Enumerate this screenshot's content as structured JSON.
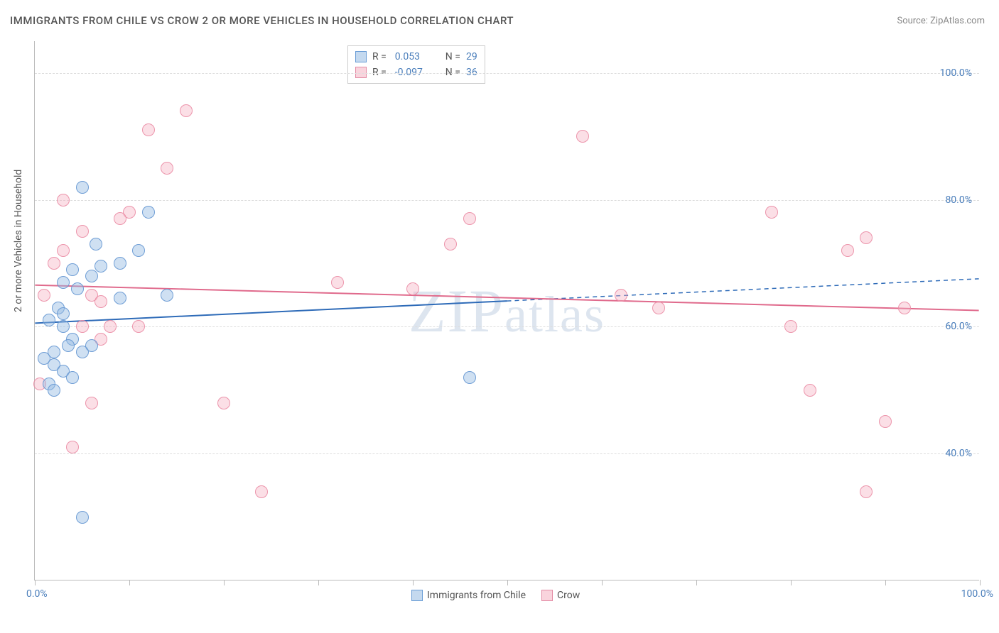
{
  "title": "IMMIGRANTS FROM CHILE VS CROW 2 OR MORE VEHICLES IN HOUSEHOLD CORRELATION CHART",
  "source": "Source: ZipAtlas.com",
  "watermark": "ZIPatlas",
  "y_title": "2 or more Vehicles in Household",
  "chart": {
    "type": "scatter",
    "xlim": [
      0,
      100
    ],
    "ylim": [
      20,
      105
    ],
    "x_ticks": [
      0,
      10,
      20,
      30,
      40,
      50,
      60,
      70,
      80,
      90,
      100
    ],
    "y_grid": [
      40,
      60,
      80,
      100
    ],
    "x_axis_labels": {
      "min": "0.0%",
      "max": "100.0%"
    },
    "y_axis_labels": {
      "40": "40.0%",
      "60": "60.0%",
      "80": "80.0%",
      "100": "100.0%"
    },
    "background_color": "#ffffff",
    "grid_color": "#dddddd",
    "axis_color": "#bbbbbb",
    "marker_radius": 9,
    "series": {
      "blue": {
        "label": "Immigrants from Chile",
        "color_fill": "rgba(148,186,226,0.45)",
        "color_stroke": "rgba(100,150,210,0.9)",
        "R": "0.053",
        "N": "29",
        "trend": {
          "y_at_x0": 60.5,
          "y_at_x50": 64,
          "y_at_x100": 67.5,
          "solid_until_x": 50,
          "color": "#2e6bb8",
          "width": 2
        },
        "points": [
          [
            2.5,
            63
          ],
          [
            1.5,
            61
          ],
          [
            3,
            60
          ],
          [
            4,
            58
          ],
          [
            2,
            56
          ],
          [
            3.5,
            57
          ],
          [
            5,
            56
          ],
          [
            6,
            57
          ],
          [
            1,
            55
          ],
          [
            2,
            54
          ],
          [
            3,
            53
          ],
          [
            4,
            52
          ],
          [
            1.5,
            51
          ],
          [
            5,
            82
          ],
          [
            6.5,
            73
          ],
          [
            9,
            70
          ],
          [
            11,
            72
          ],
          [
            12,
            78
          ],
          [
            14,
            65
          ],
          [
            9,
            64.5
          ],
          [
            4.5,
            66
          ],
          [
            6,
            68
          ],
          [
            7,
            69.5
          ],
          [
            4,
            69
          ],
          [
            3,
            67
          ],
          [
            2,
            50
          ],
          [
            46,
            52
          ],
          [
            5,
            30
          ],
          [
            3,
            62
          ]
        ]
      },
      "pink": {
        "label": "Crow",
        "color_fill": "rgba(244,176,193,0.4)",
        "color_stroke": "rgba(235,140,165,0.9)",
        "R": "-0.097",
        "N": "36",
        "trend": {
          "y_at_x0": 66.5,
          "y_at_x100": 62.5,
          "color": "#e06a8c",
          "width": 2
        },
        "points": [
          [
            0.5,
            51
          ],
          [
            1,
            65
          ],
          [
            3,
            80
          ],
          [
            5,
            75
          ],
          [
            6,
            65
          ],
          [
            7,
            64
          ],
          [
            8,
            60
          ],
          [
            10,
            78
          ],
          [
            12,
            91
          ],
          [
            14,
            85
          ],
          [
            16,
            94
          ],
          [
            20,
            48
          ],
          [
            24,
            34
          ],
          [
            32,
            67
          ],
          [
            40,
            66
          ],
          [
            44,
            73
          ],
          [
            46,
            77
          ],
          [
            58,
            90
          ],
          [
            62,
            65
          ],
          [
            66,
            63
          ],
          [
            78,
            78
          ],
          [
            80,
            60
          ],
          [
            82,
            50
          ],
          [
            86,
            72
          ],
          [
            88,
            74
          ],
          [
            90,
            45
          ],
          [
            88,
            34
          ],
          [
            92,
            63
          ],
          [
            4,
            41
          ],
          [
            6,
            48
          ],
          [
            2,
            70
          ],
          [
            3,
            72
          ],
          [
            5,
            60
          ],
          [
            7,
            58
          ],
          [
            9,
            77
          ],
          [
            11,
            60
          ]
        ]
      }
    },
    "legend_top": [
      {
        "color": "blue",
        "R": "0.053",
        "N": "29"
      },
      {
        "color": "pink",
        "R": "-0.097",
        "N": "36"
      }
    ],
    "legend_bottom": [
      {
        "color": "blue",
        "label": "Immigrants from Chile"
      },
      {
        "color": "pink",
        "label": "Crow"
      }
    ]
  }
}
